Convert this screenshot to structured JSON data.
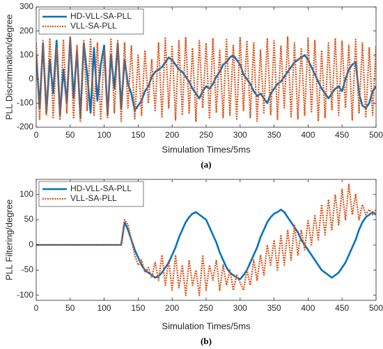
{
  "chart_data": [
    {
      "type": "line",
      "xlabel": "Simulation Times/5ms",
      "ylabel": "PLL Discrimination/degree",
      "caption": "(a)",
      "xlim": [
        0,
        500
      ],
      "xticks": [
        0,
        50,
        100,
        150,
        200,
        250,
        300,
        350,
        400,
        450,
        500
      ],
      "ylim": [
        -200,
        300
      ],
      "yticks": [
        -200,
        -100,
        0,
        100,
        200,
        300
      ],
      "legend": "upper left",
      "x": [
        0,
        5,
        10,
        15,
        20,
        25,
        30,
        35,
        40,
        45,
        50,
        55,
        60,
        65,
        70,
        75,
        80,
        85,
        90,
        95,
        100,
        105,
        110,
        115,
        120,
        125,
        130,
        135,
        140,
        145,
        150,
        155,
        160,
        165,
        170,
        175,
        180,
        185,
        190,
        195,
        200,
        205,
        210,
        215,
        220,
        225,
        230,
        235,
        240,
        245,
        250,
        255,
        260,
        265,
        270,
        275,
        280,
        285,
        290,
        295,
        300,
        305,
        310,
        315,
        320,
        325,
        330,
        335,
        340,
        345,
        350,
        355,
        360,
        365,
        370,
        375,
        380,
        385,
        390,
        395,
        400,
        405,
        410,
        415,
        420,
        425,
        430,
        435,
        440,
        445,
        450,
        455,
        460,
        465,
        470,
        475,
        480,
        485,
        490,
        495,
        500
      ],
      "series": [
        {
          "name": "HD-VLL-SA-PLL",
          "color": "#0072bd",
          "width": 2.6,
          "dash": false,
          "values": [
            100,
            -120,
            150,
            -140,
            80,
            -60,
            160,
            -150,
            40,
            -100,
            170,
            -80,
            120,
            -160,
            150,
            20,
            -140,
            130,
            -90,
            60,
            140,
            -150,
            100,
            -40,
            150,
            -120,
            80,
            -20,
            -60,
            -130,
            -110,
            -90,
            -50,
            -30,
            10,
            30,
            40,
            50,
            70,
            90,
            80,
            60,
            40,
            30,
            10,
            -10,
            -40,
            -60,
            -80,
            -50,
            -30,
            -40,
            -20,
            10,
            30,
            60,
            70,
            90,
            100,
            80,
            60,
            20,
            0,
            -20,
            -50,
            -70,
            -60,
            -80,
            -100,
            -60,
            -40,
            -20,
            -10,
            10,
            30,
            50,
            70,
            80,
            90,
            100,
            80,
            50,
            20,
            -10,
            -40,
            -60,
            -80,
            -60,
            -40,
            -30,
            -50,
            0,
            40,
            60,
            70,
            -60,
            -110,
            -120,
            -100,
            -50,
            -30
          ]
        },
        {
          "name": "VLL-SA-PLL",
          "color": "#d95319",
          "width": 2.2,
          "dash": true,
          "values": [
            150,
            -170,
            160,
            -150,
            170,
            -160,
            130,
            -170,
            165,
            -140,
            175,
            -165,
            140,
            -175,
            160,
            -130,
            170,
            -150,
            150,
            -170,
            120,
            -160,
            170,
            -140,
            160,
            -175,
            150,
            -120,
            140,
            -165,
            100,
            -150,
            120,
            -100,
            80,
            -130,
            150,
            -160,
            170,
            -120,
            140,
            -170,
            160,
            -150,
            175,
            -140,
            130,
            -175,
            160,
            -120,
            150,
            -165,
            170,
            -140,
            120,
            -160,
            165,
            -150,
            140,
            -170,
            175,
            -130,
            160,
            -160,
            150,
            -175,
            120,
            -140,
            170,
            -150,
            160,
            -170,
            140,
            -120,
            175,
            -160,
            150,
            -165,
            130,
            -150,
            170,
            -140,
            160,
            -175,
            120,
            -160,
            150,
            -130,
            170,
            -150,
            160,
            -120,
            140,
            -170,
            165,
            -140,
            150,
            -160,
            130,
            -150,
            140
          ]
        }
      ]
    },
    {
      "type": "line",
      "xlabel": "Simulation Times/5ms",
      "ylabel": "PLL Filtering/degree",
      "caption": "(b)",
      "xlim": [
        0,
        500
      ],
      "xticks": [
        0,
        50,
        100,
        150,
        200,
        250,
        300,
        350,
        400,
        450,
        500
      ],
      "ylim": [
        -110,
        130
      ],
      "yticks": [
        -100,
        -50,
        0,
        50,
        100
      ],
      "legend": "upper left",
      "x": [
        0,
        5,
        10,
        15,
        20,
        25,
        30,
        35,
        40,
        45,
        50,
        55,
        60,
        65,
        70,
        75,
        80,
        85,
        90,
        95,
        100,
        105,
        110,
        115,
        120,
        125,
        130,
        135,
        140,
        145,
        150,
        155,
        160,
        165,
        170,
        175,
        180,
        185,
        190,
        195,
        200,
        205,
        210,
        215,
        220,
        225,
        230,
        235,
        240,
        245,
        250,
        255,
        260,
        265,
        270,
        275,
        280,
        285,
        290,
        295,
        300,
        305,
        310,
        315,
        320,
        325,
        330,
        335,
        340,
        345,
        350,
        355,
        360,
        365,
        370,
        375,
        380,
        385,
        390,
        395,
        400,
        405,
        410,
        415,
        420,
        425,
        430,
        435,
        440,
        445,
        450,
        455,
        460,
        465,
        470,
        475,
        480,
        485,
        490,
        495,
        500
      ],
      "series": [
        {
          "name": "HD-VLL-SA-PLL",
          "color": "#0072bd",
          "width": 2.6,
          "dash": false,
          "values": [
            0,
            0,
            0,
            0,
            0,
            0,
            0,
            0,
            0,
            0,
            0,
            0,
            0,
            0,
            0,
            0,
            0,
            0,
            0,
            0,
            0,
            0,
            0,
            0,
            0,
            0,
            45,
            30,
            10,
            -10,
            -25,
            -40,
            -50,
            -55,
            -60,
            -65,
            -62,
            -55,
            -45,
            -35,
            -20,
            -5,
            15,
            30,
            45,
            55,
            62,
            65,
            60,
            55,
            50,
            35,
            20,
            5,
            -15,
            -30,
            -45,
            -55,
            -60,
            -65,
            -68,
            -60,
            -50,
            -35,
            -20,
            -5,
            15,
            30,
            45,
            55,
            62,
            65,
            70,
            65,
            55,
            45,
            35,
            25,
            10,
            0,
            -10,
            -20,
            -30,
            -40,
            -50,
            -55,
            -60,
            -65,
            -60,
            -55,
            -45,
            -35,
            -20,
            -5,
            10,
            30,
            45,
            55,
            60,
            65,
            60
          ]
        },
        {
          "name": "VLL-SA-PLL",
          "color": "#d95319",
          "width": 2.2,
          "dash": true,
          "values": [
            0,
            0,
            0,
            0,
            0,
            0,
            0,
            0,
            0,
            0,
            0,
            0,
            0,
            0,
            0,
            0,
            0,
            0,
            0,
            0,
            0,
            0,
            0,
            0,
            0,
            0,
            50,
            40,
            10,
            -20,
            -40,
            -30,
            -55,
            -45,
            -65,
            -35,
            -70,
            -20,
            -80,
            -30,
            -90,
            -20,
            -85,
            -40,
            -100,
            -30,
            -80,
            -50,
            -100,
            -20,
            -90,
            -40,
            -70,
            -30,
            -90,
            -40,
            -80,
            -50,
            -90,
            -60,
            -75,
            -90,
            -50,
            -80,
            -30,
            -70,
            -20,
            -60,
            0,
            -40,
            10,
            -50,
            20,
            -40,
            30,
            -30,
            40,
            -20,
            30,
            -10,
            50,
            0,
            60,
            10,
            80,
            20,
            90,
            30,
            100,
            40,
            110,
            50,
            120,
            60,
            100,
            50,
            80,
            60,
            70,
            60,
            70
          ]
        }
      ]
    }
  ]
}
